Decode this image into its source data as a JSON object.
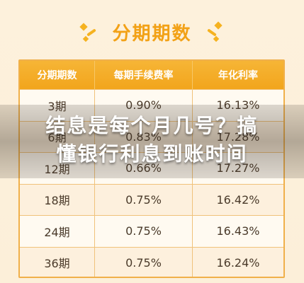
{
  "title": "分期期数",
  "colors": {
    "accent": "#f2a116",
    "header_bg": "#f4ad28",
    "border": "#f0b04a",
    "row_alt": "#fdf0dd"
  },
  "table": {
    "headers": [
      "分期期数",
      "每期手续费率",
      "年化利率"
    ],
    "rows": [
      [
        "3期",
        "0.90%",
        "16.13%"
      ],
      [
        "6期",
        "0.83%",
        "17.28%"
      ],
      [
        "12期",
        "0.66%",
        "17.27%"
      ],
      [
        "18期",
        "0.75%",
        "16.42%"
      ],
      [
        "24期",
        "0.75%",
        "16.43%"
      ],
      [
        "36期",
        "0.75%",
        "16.24%"
      ]
    ]
  },
  "headline": {
    "line1": "结息是每个月几号？搞",
    "line2": "懂银行利息到账时间"
  }
}
